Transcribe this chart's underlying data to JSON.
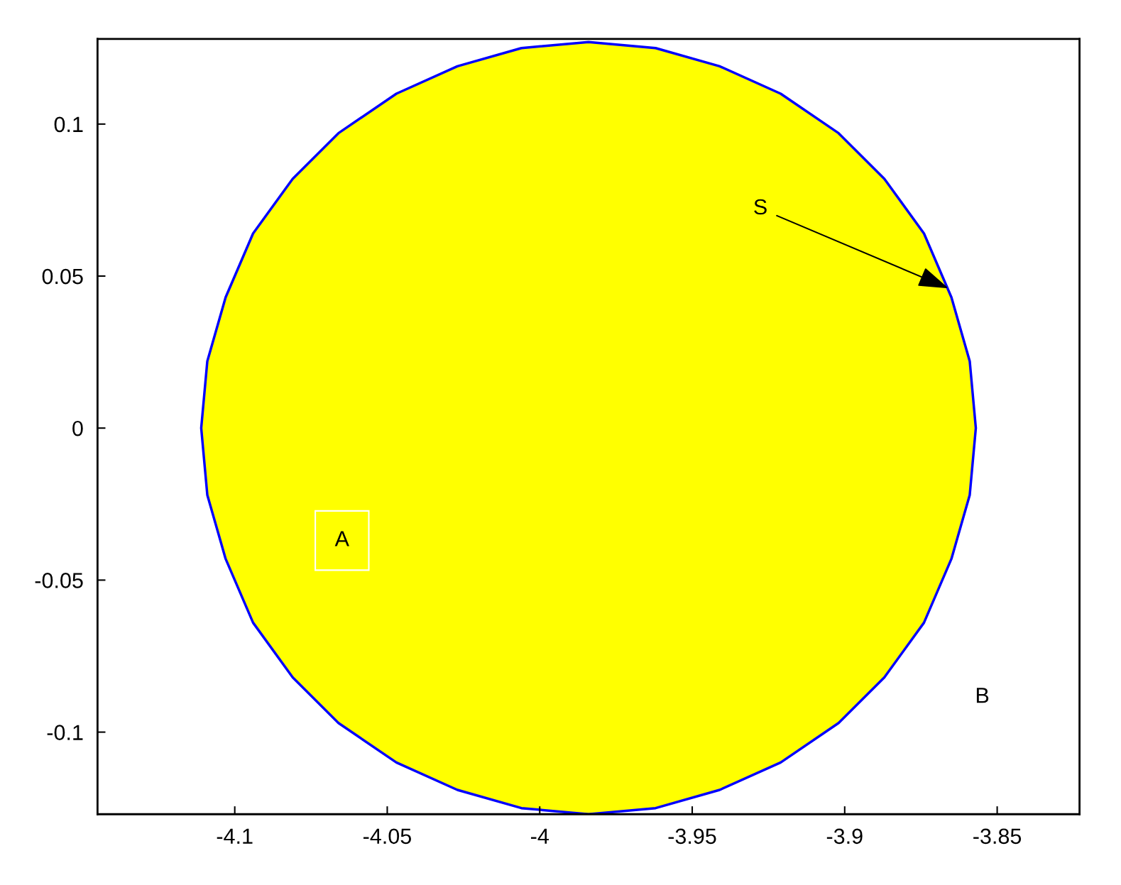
{
  "chart_data": {
    "type": "area",
    "xlim": [
      -4.145,
      -3.823
    ],
    "ylim": [
      -0.127,
      0.128
    ],
    "xticks": [
      -4.1,
      -4.05,
      -4,
      -3.95,
      -3.9,
      -3.85
    ],
    "yticks": [
      -0.1,
      -0.05,
      0,
      0.05,
      0.1
    ],
    "grid": false,
    "series": [
      {
        "color": "#ffff00",
        "x": [
          -3.857,
          -3.859,
          -3.865,
          -3.874,
          -3.887,
          -3.902,
          -3.921,
          -3.941,
          -3.962,
          -3.984,
          -4.006,
          -4.027,
          -4.047,
          -4.066,
          -4.081,
          -4.094,
          -4.103,
          -4.109,
          -4.111,
          -4.109,
          -4.103,
          -4.094,
          -4.081,
          -4.066,
          -4.047,
          -4.027,
          -4.006,
          -3.984,
          -3.962,
          -3.941,
          -3.921,
          -3.902,
          -3.887,
          -3.874,
          -3.865,
          -3.859,
          -3.857
        ],
        "values": [
          0,
          0.022,
          0.043,
          0.064,
          0.082,
          0.097,
          0.11,
          0.119,
          0.125,
          0.127,
          0.125,
          0.119,
          0.11,
          0.097,
          0.082,
          0.064,
          0.043,
          0.022,
          0,
          -0.022,
          -0.043,
          -0.064,
          -0.082,
          -0.097,
          -0.11,
          -0.119,
          -0.125,
          -0.127,
          -0.125,
          -0.119,
          -0.11,
          -0.097,
          -0.082,
          -0.064,
          -0.043,
          -0.022,
          0
        ]
      }
    ],
    "annotations": [
      "A",
      "B",
      {
        "text": "S",
        "x": -3.866,
        "y": 0.046
      }
    ]
  }
}
